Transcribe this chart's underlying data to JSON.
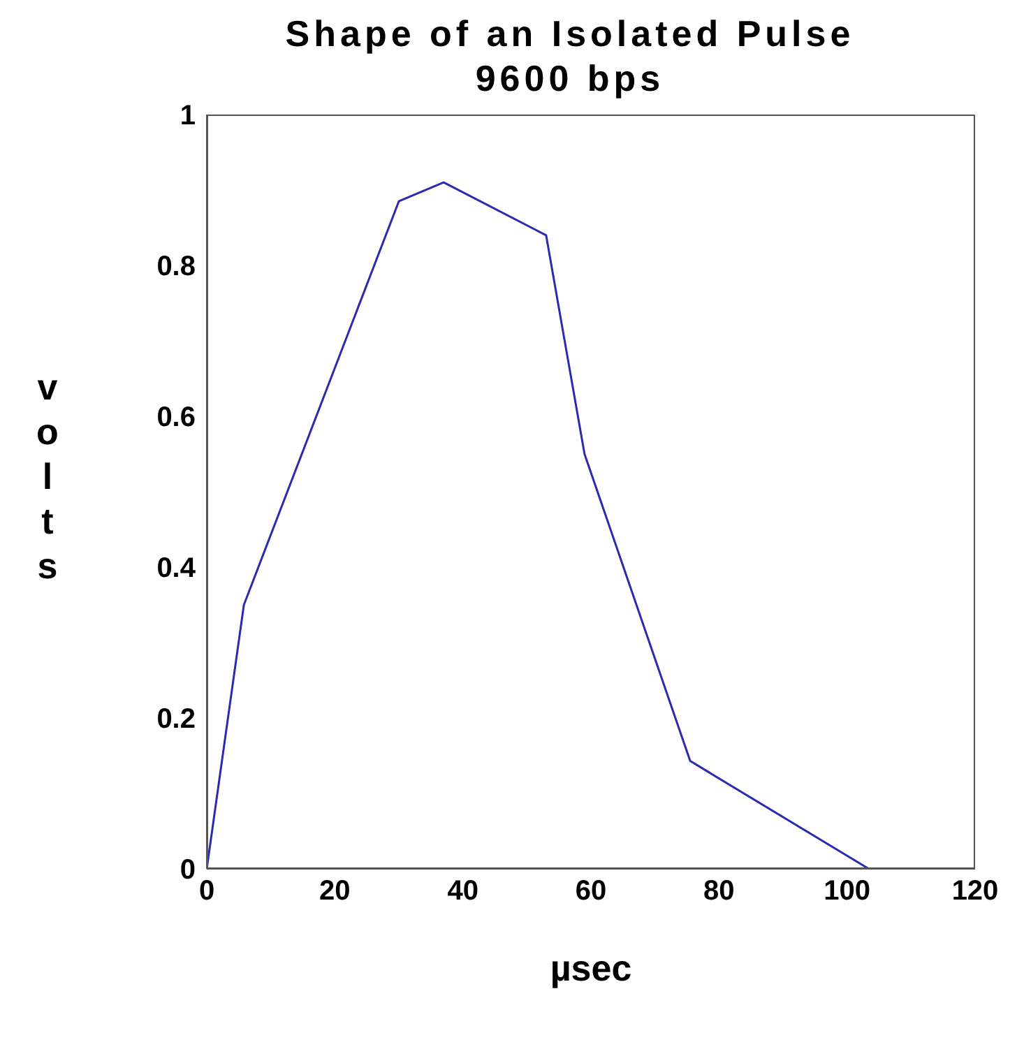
{
  "chart_data": {
    "type": "line",
    "title": "Shape of an Isolated Pulse",
    "subtitle": "9600 bps",
    "xlabel": "µsec",
    "ylabel": "volts",
    "x": [
      0,
      5.8,
      30,
      37,
      53,
      59,
      75.5,
      103.4
    ],
    "series": [
      {
        "color": "#2b2bb0",
        "values": [
          0,
          0.35,
          0.885,
          0.91,
          0.84,
          0.55,
          0.143,
          0
        ]
      }
    ],
    "xlim": [
      0,
      120
    ],
    "xticks": [
      0,
      20,
      40,
      60,
      80,
      100,
      120
    ],
    "ylim": [
      0,
      1
    ],
    "yticks": [
      0,
      0.2,
      0.4,
      0.6,
      0.8,
      1
    ],
    "grid": false,
    "marker": "none",
    "line_style": "solid"
  }
}
